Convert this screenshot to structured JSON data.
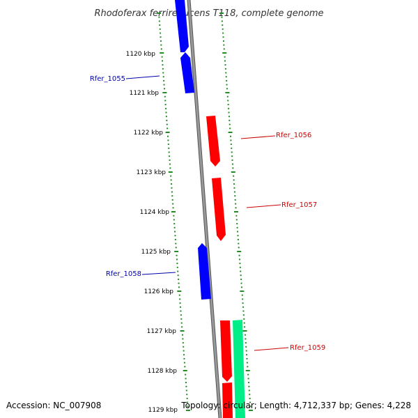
{
  "title": "Rhodoferax ferrireducens T118, complete genome",
  "accession": "Accession: NC_007908",
  "topology": "Topology: circular; Length: 4,712,337 bp; Genes: 4,228",
  "colors": {
    "forward": "#ff0000",
    "reverse": "#0000ff",
    "other": "#00ee88",
    "ticks": "#228b22",
    "backbone": "#888888"
  },
  "kbp_markers": [
    {
      "label": "1120 kbp"
    },
    {
      "label": "1121 kbp"
    },
    {
      "label": "1122 kbp"
    },
    {
      "label": "1123 kbp"
    },
    {
      "label": "1124 kbp"
    },
    {
      "label": "1125 kbp"
    },
    {
      "label": "1126 kbp"
    },
    {
      "label": "1127 kbp"
    },
    {
      "label": "1128 kbp"
    },
    {
      "label": "1129 kbp"
    }
  ],
  "genes": [
    {
      "name": "Rfer_1055",
      "strand": "reverse"
    },
    {
      "name": "Rfer_1056",
      "strand": "forward"
    },
    {
      "name": "Rfer_1057",
      "strand": "forward"
    },
    {
      "name": "Rfer_1058",
      "strand": "reverse"
    },
    {
      "name": "Rfer_1059",
      "strand": "forward"
    }
  ]
}
